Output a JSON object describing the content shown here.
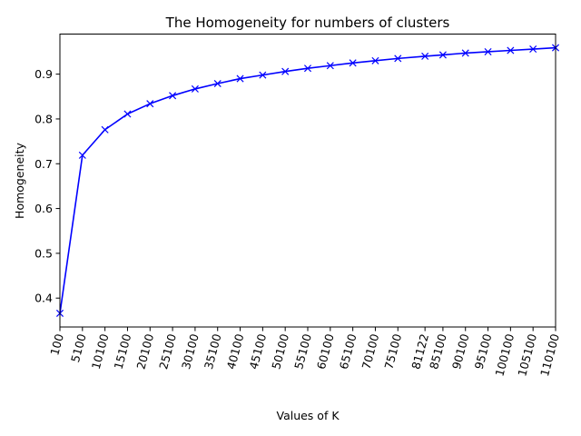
{
  "chart_data": {
    "type": "line",
    "title": "The Homogeneity for numbers of clusters",
    "xlabel": "Values of K",
    "ylabel": "Homogeneity",
    "x": [
      100,
      5100,
      10100,
      15100,
      20100,
      25100,
      30100,
      35100,
      40100,
      45100,
      50100,
      55100,
      60100,
      65100,
      70100,
      75100,
      81122,
      85100,
      90100,
      95100,
      100100,
      105100,
      110100
    ],
    "x_tick_labels": [
      "100",
      "5100",
      "10100",
      "15100",
      "20100",
      "25100",
      "30100",
      "35100",
      "40100",
      "45100",
      "50100",
      "55100",
      "60100",
      "65100",
      "70100",
      "75100",
      "81122",
      "85100",
      "90100",
      "95100",
      "100100",
      "105100",
      "110100"
    ],
    "series": [
      {
        "values": [
          0.366,
          0.719,
          0.776,
          0.811,
          0.834,
          0.852,
          0.867,
          0.879,
          0.89,
          0.898,
          0.906,
          0.913,
          0.919,
          0.925,
          0.93,
          0.935,
          0.94,
          0.943,
          0.947,
          0.95,
          0.953,
          0.956,
          0.959
        ],
        "color": "#0000ff",
        "marker": "x"
      }
    ],
    "xlim": [
      100,
      110100
    ],
    "ylim": [
      0.3355,
      0.9895
    ],
    "y_ticks": [
      0.4,
      0.5,
      0.6,
      0.7,
      0.8,
      0.9
    ],
    "y_tick_labels": [
      "0.4",
      "0.5",
      "0.6",
      "0.7",
      "0.8",
      "0.9"
    ],
    "x_tick_rotation": "75 degrees",
    "grid": false,
    "legend": "none"
  }
}
